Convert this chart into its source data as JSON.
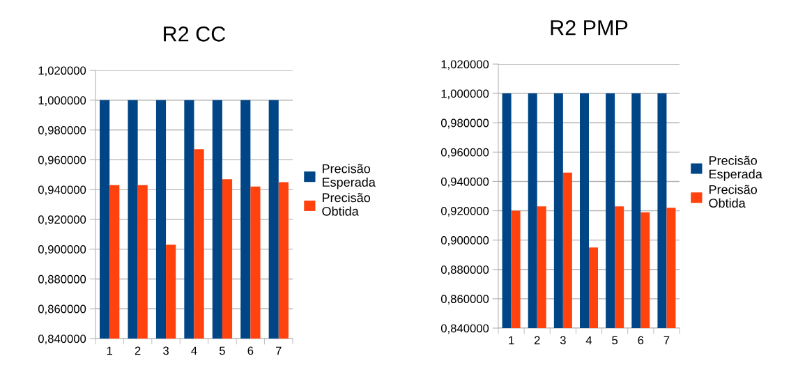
{
  "chart_data": [
    {
      "type": "bar",
      "title": "R2 CC",
      "categories": [
        "1",
        "2",
        "3",
        "4",
        "5",
        "6",
        "7"
      ],
      "series": [
        {
          "name": "Precisão\nEsperada",
          "color": "#004586",
          "values": [
            1.0,
            1.0,
            1.0,
            1.0,
            1.0,
            1.0,
            1.0
          ]
        },
        {
          "name": "Precisão\nObtida",
          "color": "#ff420e",
          "values": [
            0.943,
            0.943,
            0.903,
            0.967,
            0.947,
            0.942,
            0.945
          ]
        }
      ],
      "ylim": [
        0.84,
        1.02
      ],
      "yticks": [
        {
          "value": 0.84,
          "label": "0,840000"
        },
        {
          "value": 0.86,
          "label": "0,860000"
        },
        {
          "value": 0.88,
          "label": "0,880000"
        },
        {
          "value": 0.9,
          "label": "0,900000"
        },
        {
          "value": 0.92,
          "label": "0,920000"
        },
        {
          "value": 0.94,
          "label": "0,940000"
        },
        {
          "value": 0.96,
          "label": "0,960000"
        },
        {
          "value": 0.98,
          "label": "0,980000"
        },
        {
          "value": 1.0,
          "label": "1,000000"
        },
        {
          "value": 1.02,
          "label": "1,020000"
        }
      ],
      "grid": "y",
      "legend": "right"
    },
    {
      "type": "bar",
      "title": "R2 PMP",
      "categories": [
        "1",
        "2",
        "3",
        "4",
        "5",
        "6",
        "7"
      ],
      "series": [
        {
          "name": "Precisão\nEsperada",
          "color": "#004586",
          "values": [
            1.0,
            1.0,
            1.0,
            1.0,
            1.0,
            1.0,
            1.0
          ]
        },
        {
          "name": "Precisão\nObtida",
          "color": "#ff420e",
          "values": [
            0.92,
            0.923,
            0.946,
            0.895,
            0.923,
            0.919,
            0.922
          ]
        }
      ],
      "ylim": [
        0.84,
        1.02
      ],
      "yticks": [
        {
          "value": 0.84,
          "label": "0,840000"
        },
        {
          "value": 0.86,
          "label": "0,860000"
        },
        {
          "value": 0.88,
          "label": "0,880000"
        },
        {
          "value": 0.9,
          "label": "0,900000"
        },
        {
          "value": 0.92,
          "label": "0,920000"
        },
        {
          "value": 0.94,
          "label": "0,940000"
        },
        {
          "value": 0.96,
          "label": "0,960000"
        },
        {
          "value": 0.98,
          "label": "0,980000"
        },
        {
          "value": 1.0,
          "label": "1,000000"
        },
        {
          "value": 1.02,
          "label": "1,020000"
        }
      ],
      "grid": "y",
      "legend": "right"
    }
  ]
}
